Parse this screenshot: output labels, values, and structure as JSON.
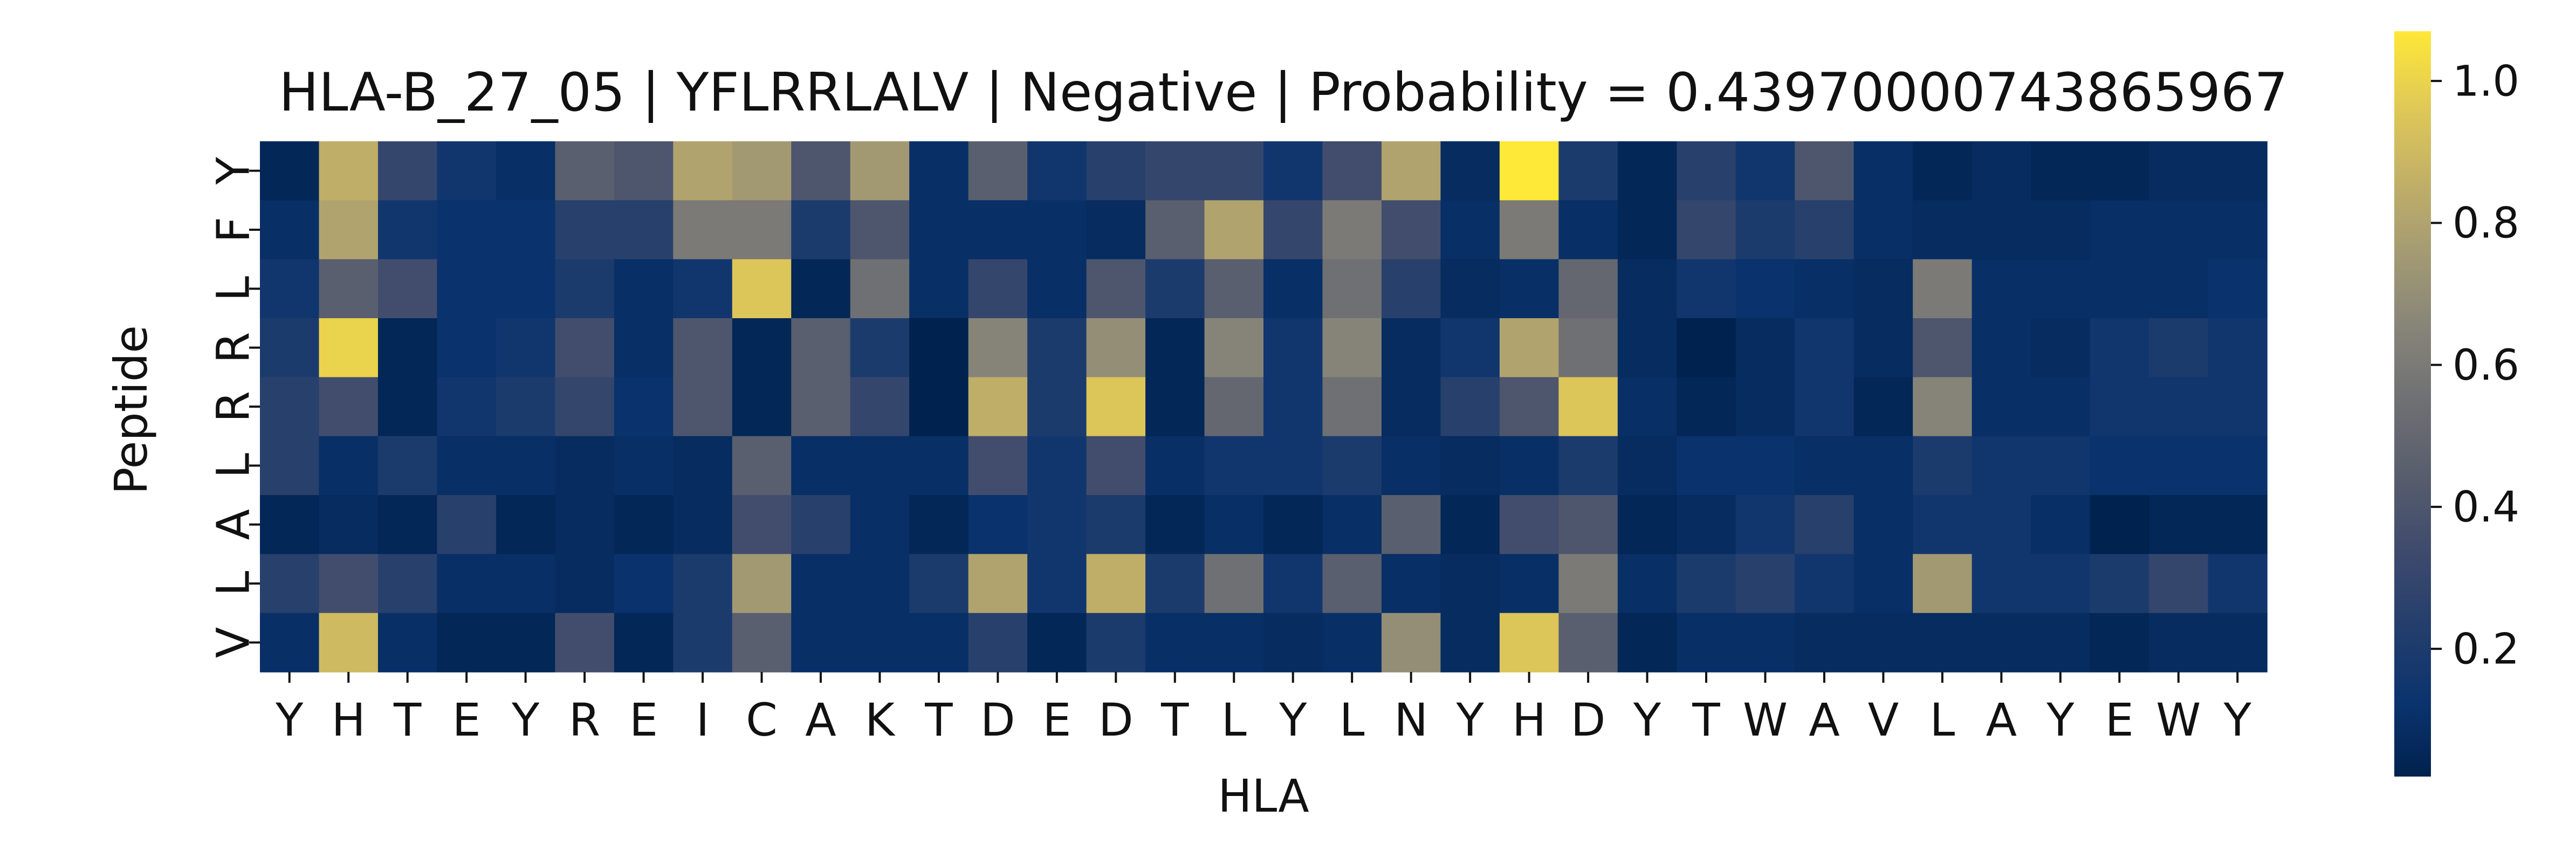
{
  "chart_data": {
    "type": "heatmap",
    "title": "HLA-B_27_05 | YFLRRLALV | Negative | Probability = 0.43970000743865967",
    "xlabel": "HLA",
    "ylabel": "Peptide",
    "x_tick_labels": [
      "Y",
      "H",
      "T",
      "E",
      "Y",
      "R",
      "E",
      "I",
      "C",
      "A",
      "K",
      "T",
      "D",
      "E",
      "D",
      "T",
      "L",
      "Y",
      "L",
      "N",
      "Y",
      "H",
      "D",
      "Y",
      "T",
      "W",
      "A",
      "V",
      "L",
      "A",
      "Y",
      "E",
      "W",
      "Y"
    ],
    "y_tick_labels": [
      "Y",
      "F",
      "L",
      "R",
      "R",
      "L",
      "A",
      "L",
      "V"
    ],
    "colormap": "cividis",
    "colorbar": {
      "min": 0.02,
      "max": 1.07,
      "ticks": [
        0.2,
        0.4,
        0.6,
        0.8,
        1.0
      ],
      "tick_labels": [
        "0.2",
        "0.4",
        "0.6",
        "0.8",
        "1.0"
      ]
    },
    "values": [
      [
        0.05,
        0.85,
        0.3,
        0.15,
        0.1,
        0.45,
        0.4,
        0.8,
        0.75,
        0.4,
        0.75,
        0.1,
        0.45,
        0.15,
        0.25,
        0.3,
        0.3,
        0.15,
        0.35,
        0.8,
        0.08,
        1.07,
        0.2,
        0.05,
        0.25,
        0.15,
        0.4,
        0.1,
        0.05,
        0.08,
        0.05,
        0.05,
        0.08,
        0.08
      ],
      [
        0.1,
        0.8,
        0.15,
        0.12,
        0.12,
        0.25,
        0.25,
        0.6,
        0.6,
        0.2,
        0.4,
        0.1,
        0.1,
        0.1,
        0.08,
        0.45,
        0.8,
        0.3,
        0.6,
        0.35,
        0.1,
        0.6,
        0.1,
        0.05,
        0.3,
        0.2,
        0.25,
        0.1,
        0.08,
        0.08,
        0.08,
        0.1,
        0.1,
        0.1
      ],
      [
        0.15,
        0.45,
        0.35,
        0.12,
        0.12,
        0.2,
        0.1,
        0.15,
        0.95,
        0.05,
        0.55,
        0.1,
        0.3,
        0.1,
        0.4,
        0.2,
        0.45,
        0.1,
        0.55,
        0.25,
        0.08,
        0.1,
        0.5,
        0.08,
        0.15,
        0.12,
        0.1,
        0.08,
        0.6,
        0.1,
        0.1,
        0.1,
        0.1,
        0.12
      ],
      [
        0.2,
        1.0,
        0.05,
        0.12,
        0.15,
        0.35,
        0.1,
        0.4,
        0.05,
        0.45,
        0.2,
        0.02,
        0.65,
        0.2,
        0.7,
        0.05,
        0.65,
        0.15,
        0.65,
        0.08,
        0.15,
        0.8,
        0.55,
        0.08,
        0.02,
        0.08,
        0.15,
        0.08,
        0.4,
        0.1,
        0.08,
        0.15,
        0.2,
        0.15
      ],
      [
        0.25,
        0.35,
        0.05,
        0.15,
        0.2,
        0.3,
        0.12,
        0.4,
        0.05,
        0.45,
        0.3,
        0.02,
        0.85,
        0.2,
        0.95,
        0.05,
        0.5,
        0.15,
        0.55,
        0.08,
        0.25,
        0.4,
        0.95,
        0.1,
        0.05,
        0.08,
        0.15,
        0.05,
        0.65,
        0.1,
        0.1,
        0.15,
        0.15,
        0.15
      ],
      [
        0.25,
        0.1,
        0.2,
        0.1,
        0.1,
        0.08,
        0.1,
        0.08,
        0.45,
        0.1,
        0.1,
        0.1,
        0.35,
        0.15,
        0.35,
        0.1,
        0.15,
        0.15,
        0.2,
        0.1,
        0.08,
        0.1,
        0.2,
        0.08,
        0.12,
        0.12,
        0.1,
        0.1,
        0.2,
        0.15,
        0.15,
        0.12,
        0.12,
        0.12
      ],
      [
        0.05,
        0.08,
        0.05,
        0.25,
        0.05,
        0.08,
        0.05,
        0.08,
        0.35,
        0.25,
        0.1,
        0.05,
        0.12,
        0.15,
        0.2,
        0.05,
        0.1,
        0.05,
        0.1,
        0.45,
        0.05,
        0.35,
        0.4,
        0.05,
        0.08,
        0.15,
        0.25,
        0.1,
        0.15,
        0.15,
        0.1,
        0.02,
        0.05,
        0.05
      ],
      [
        0.25,
        0.35,
        0.25,
        0.1,
        0.1,
        0.08,
        0.12,
        0.2,
        0.75,
        0.1,
        0.1,
        0.2,
        0.8,
        0.15,
        0.85,
        0.2,
        0.55,
        0.15,
        0.45,
        0.1,
        0.08,
        0.1,
        0.6,
        0.1,
        0.2,
        0.25,
        0.15,
        0.1,
        0.75,
        0.15,
        0.15,
        0.2,
        0.3,
        0.15
      ],
      [
        0.1,
        0.9,
        0.1,
        0.05,
        0.05,
        0.35,
        0.05,
        0.2,
        0.45,
        0.1,
        0.1,
        0.1,
        0.25,
        0.05,
        0.2,
        0.1,
        0.1,
        0.08,
        0.1,
        0.7,
        0.08,
        0.95,
        0.45,
        0.05,
        0.1,
        0.1,
        0.08,
        0.08,
        0.08,
        0.08,
        0.08,
        0.05,
        0.08,
        0.08
      ]
    ]
  }
}
